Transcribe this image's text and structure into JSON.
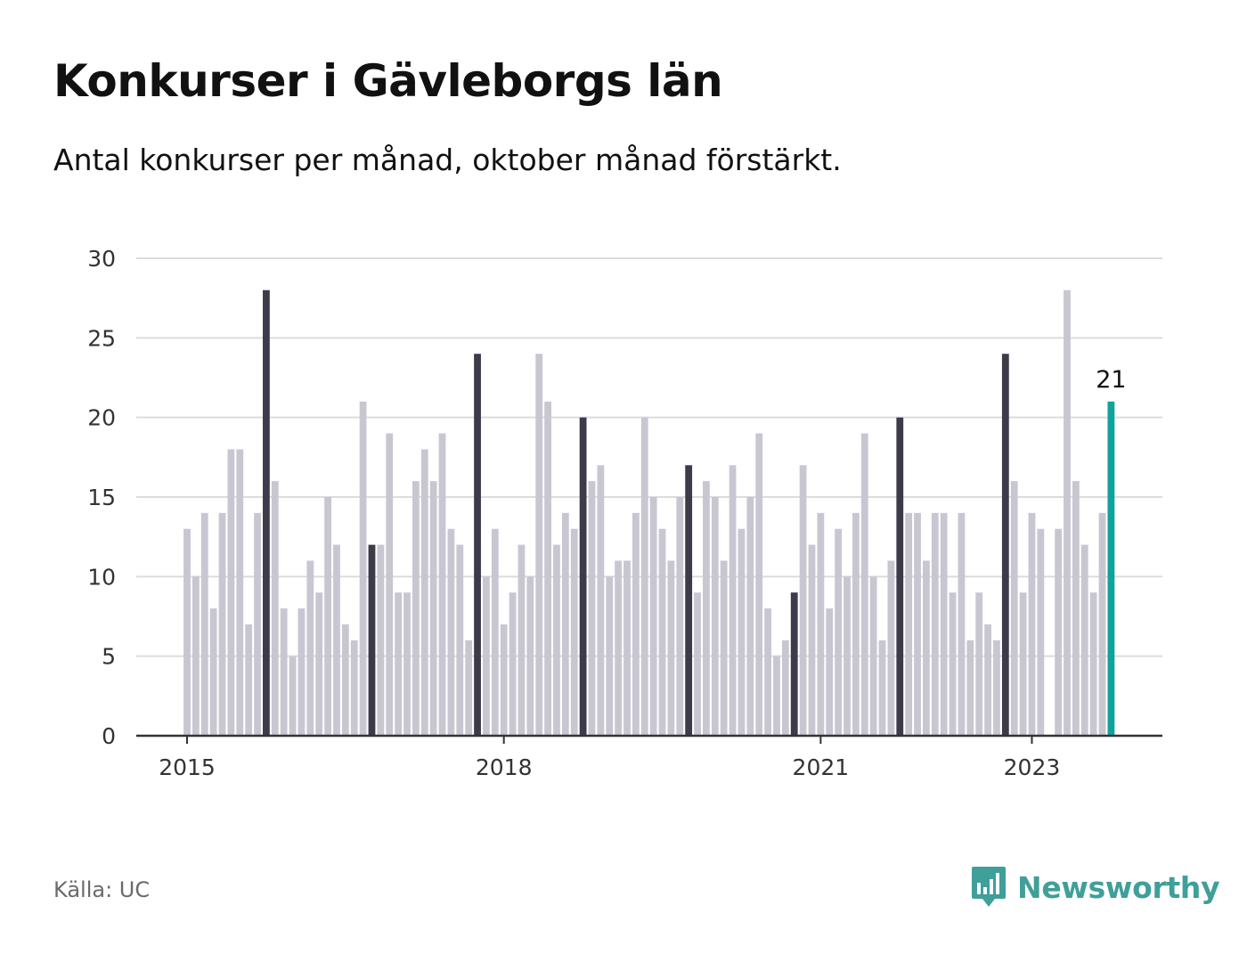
{
  "header": {
    "title": "Konkurser i Gävleborgs län",
    "subtitle": "Antal konkurser per månad, oktober månad förstärkt."
  },
  "footer": {
    "source": "Källa: UC",
    "brand_name": "Newsworthy",
    "brand_icon": "bar-chart-speech-bubble-icon"
  },
  "colors": {
    "bar_default": "#c8c7d1",
    "bar_october": "#3d3b4a",
    "bar_latest": "#10a29c",
    "grid": "#dcdcdc",
    "axis": "#333333",
    "brand": "#3f9f99"
  },
  "chart_data": {
    "type": "bar",
    "title": "Konkurser i Gävleborgs län",
    "subtitle": "Antal konkurser per månad, oktober månad förstärkt.",
    "xlabel": "",
    "ylabel": "",
    "ylim": [
      0,
      30
    ],
    "yticks": [
      0,
      5,
      10,
      15,
      20,
      25,
      30
    ],
    "xtick_labels": [
      {
        "label": "2015",
        "month_index": 0
      },
      {
        "label": "2018",
        "month_index": 36
      },
      {
        "label": "2021",
        "month_index": 72
      },
      {
        "label": "2023",
        "month_index": 96
      }
    ],
    "grid": true,
    "legend": "none",
    "start": "2015-01",
    "highlight_month": "oktober",
    "latest_value_label": "21",
    "values": [
      13,
      10,
      14,
      8,
      14,
      18,
      18,
      7,
      14,
      28,
      16,
      8,
      5,
      8,
      11,
      9,
      15,
      12,
      7,
      6,
      21,
      12,
      12,
      19,
      9,
      9,
      16,
      18,
      16,
      19,
      13,
      12,
      6,
      24,
      10,
      13,
      7,
      9,
      12,
      10,
      24,
      21,
      12,
      14,
      13,
      20,
      16,
      17,
      10,
      11,
      11,
      14,
      20,
      15,
      13,
      11,
      15,
      17,
      9,
      16,
      15,
      11,
      17,
      13,
      15,
      19,
      8,
      5,
      6,
      9,
      17,
      12,
      14,
      8,
      13,
      10,
      14,
      19,
      10,
      6,
      11,
      20,
      14,
      14,
      11,
      14,
      14,
      9,
      14,
      6,
      9,
      7,
      6,
      24,
      16,
      9,
      14,
      13,
      0,
      13,
      28,
      16,
      12,
      9,
      14,
      21
    ]
  }
}
